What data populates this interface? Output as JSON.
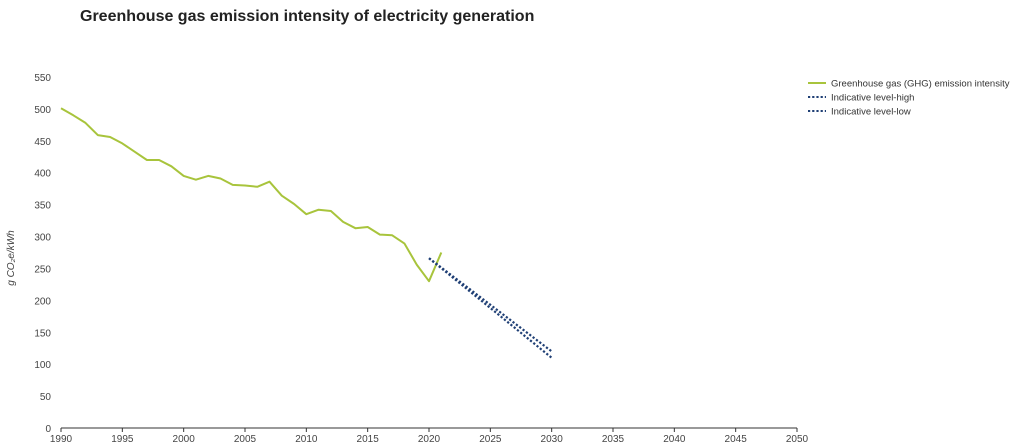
{
  "chart_data": {
    "type": "line",
    "title": "Greenhouse gas emission intensity of electricity generation",
    "ylabel": "g CO₂e/kWh",
    "xlabel": "",
    "xlim": [
      1990,
      2050
    ],
    "ylim": [
      0,
      550
    ],
    "x_ticks": [
      1990,
      1995,
      2000,
      2005,
      2010,
      2015,
      2020,
      2025,
      2030,
      2035,
      2040,
      2045,
      2050
    ],
    "y_ticks": [
      0,
      50,
      100,
      150,
      200,
      250,
      300,
      350,
      400,
      450,
      500,
      550
    ],
    "grid": false,
    "legend_position": "top-right",
    "series": [
      {
        "name": "Greenhouse gas (GHG) emission intensity",
        "color": "#a8c43c",
        "style": "solid",
        "x": [
          1990,
          1991,
          1992,
          1993,
          1994,
          1995,
          1996,
          1997,
          1998,
          1999,
          2000,
          2001,
          2002,
          2003,
          2004,
          2005,
          2006,
          2007,
          2008,
          2009,
          2010,
          2011,
          2012,
          2013,
          2014,
          2015,
          2016,
          2017,
          2018,
          2019,
          2020,
          2021
        ],
        "y": [
          501,
          490,
          478,
          459,
          456,
          446,
          433,
          420,
          420,
          410,
          395,
          389,
          395,
          391,
          381,
          380,
          378,
          386,
          364,
          351,
          335,
          342,
          340,
          323,
          313,
          315,
          303,
          302,
          289,
          256,
          230,
          275
        ]
      },
      {
        "name": "Indicative level-high",
        "color": "#1f3f75",
        "style": "dotted",
        "x": [
          2020,
          2030
        ],
        "y": [
          266,
          120
        ]
      },
      {
        "name": "Indicative level-low",
        "color": "#1f3f75",
        "style": "dotted",
        "x": [
          2020,
          2030
        ],
        "y": [
          266,
          110
        ]
      }
    ]
  }
}
